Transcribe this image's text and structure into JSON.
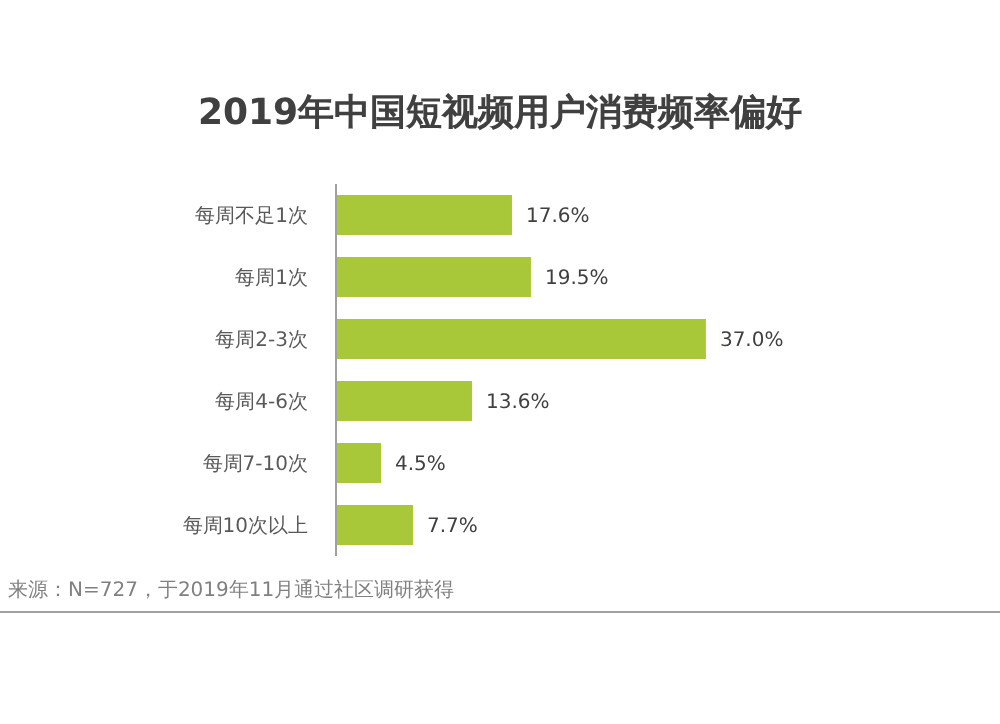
{
  "chart_data": {
    "type": "bar",
    "orientation": "horizontal",
    "title": "2019年中国短视频用户消费频率偏好",
    "categories": [
      "每周不足1次",
      "每周1次",
      "每周2-3次",
      "每周4-6次",
      "每周7-10次",
      "每周10次以上"
    ],
    "values": [
      17.6,
      19.5,
      37.0,
      13.6,
      4.5,
      7.7
    ],
    "value_labels": [
      "17.6%",
      "19.5%",
      "37.0%",
      "13.6%",
      "4.5%",
      "7.7%"
    ],
    "color": "#a8c83a",
    "annotations": [
      "来源：N=727，于2019年11月通过社区调研获得"
    ]
  }
}
